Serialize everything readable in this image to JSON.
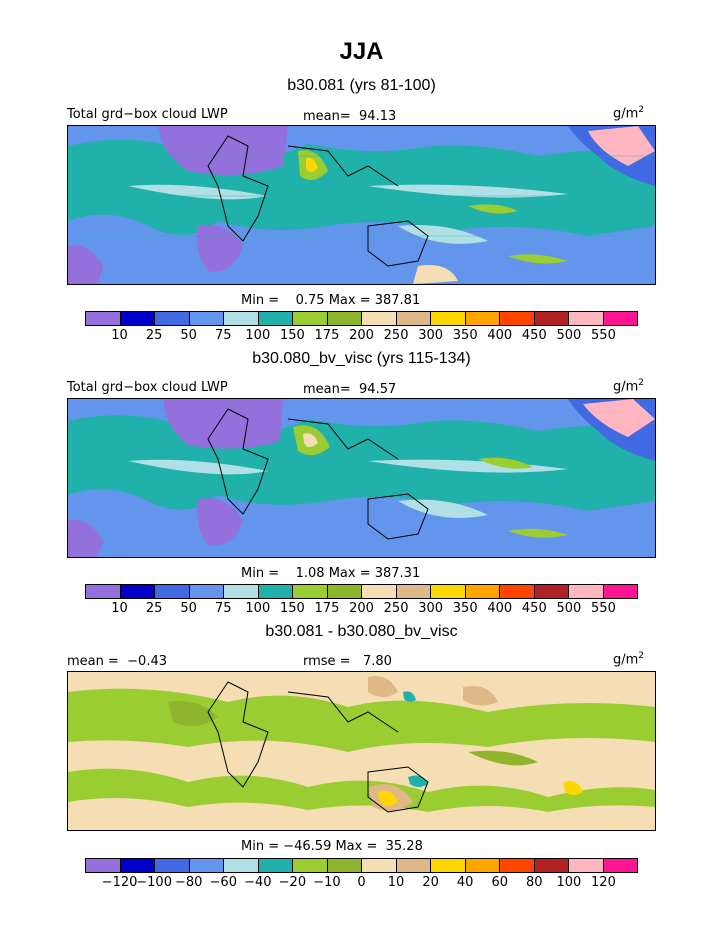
{
  "title": "JJA",
  "panels": [
    {
      "subtitle": "b30.081 (yrs 81-100)",
      "left_label": "Total grd−box cloud LWP",
      "stat_label": "mean=  94.13",
      "units": "g/m",
      "units_sup": "2",
      "minmax": "Min =    0.75 Max = 387.81",
      "colorbar": {
        "colors": [
          "#9370db",
          "#0000cd",
          "#4169e1",
          "#6495ed",
          "#b0e0e6",
          "#20b2aa",
          "#9acd32",
          "#8fb42d",
          "#f5deb3",
          "#deb887",
          "#ffd700",
          "#ffa500",
          "#ff4500",
          "#b22222",
          "#ffb6c1",
          "#ff1493"
        ],
        "ticks": [
          "10",
          "25",
          "50",
          "75",
          "100",
          "150",
          "175",
          "200",
          "250",
          "300",
          "350",
          "400",
          "450",
          "500",
          "550"
        ]
      }
    },
    {
      "subtitle": "b30.080_bv_visc (yrs 115-134)",
      "left_label": "Total grd−box cloud LWP",
      "stat_label": "mean=  94.57",
      "units": "g/m",
      "units_sup": "2",
      "minmax": "Min =    1.08 Max = 387.31",
      "colorbar": {
        "colors": [
          "#9370db",
          "#0000cd",
          "#4169e1",
          "#6495ed",
          "#b0e0e6",
          "#20b2aa",
          "#9acd32",
          "#8fb42d",
          "#f5deb3",
          "#deb887",
          "#ffd700",
          "#ffa500",
          "#ff4500",
          "#b22222",
          "#ffb6c1",
          "#ff1493"
        ],
        "ticks": [
          "10",
          "25",
          "50",
          "75",
          "100",
          "150",
          "175",
          "200",
          "250",
          "300",
          "350",
          "400",
          "450",
          "500",
          "550"
        ]
      }
    },
    {
      "subtitle": "b30.081 - b30.080_bv_visc",
      "left_label": "mean =  −0.43",
      "stat_label": "rmse =   7.80",
      "units": "g/m",
      "units_sup": "2",
      "minmax": "Min = −46.59 Max =  35.28",
      "colorbar": {
        "colors": [
          "#9370db",
          "#0000cd",
          "#4169e1",
          "#6495ed",
          "#b0e0e6",
          "#20b2aa",
          "#9acd32",
          "#8fb42d",
          "#f5deb3",
          "#deb887",
          "#ffd700",
          "#ffa500",
          "#ff4500",
          "#b22222",
          "#ffb6c1",
          "#ff1493"
        ],
        "ticks": [
          "−120",
          "−100",
          "−80",
          "−60",
          "−40",
          "−20",
          "−10",
          "0",
          "10",
          "20",
          "40",
          "60",
          "80",
          "100",
          "120"
        ]
      }
    }
  ]
}
